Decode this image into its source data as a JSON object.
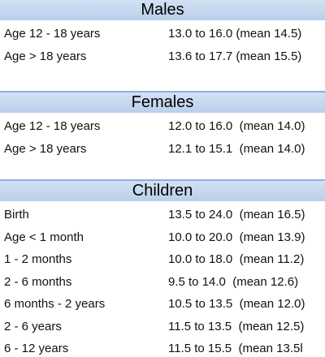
{
  "sections": [
    {
      "title": "Males",
      "rows": [
        [
          "Age 12 - 18 years",
          "13.0 to 16.0 (mean 14.5)"
        ],
        [
          "Age > 18 years",
          "13.6 to 17.7 (mean 15.5)"
        ]
      ]
    },
    {
      "title": "Females",
      "rows": [
        [
          "Age 12 - 18 years",
          "12.0 to 16.0  (mean 14.0)"
        ],
        [
          "Age > 18 years",
          "12.1 to 15.1  (mean 14.0)"
        ]
      ]
    },
    {
      "title": "Children",
      "rows": [
        [
          "Birth",
          "13.5 to 24.0  (mean 16.5)"
        ],
        [
          "Age < 1 month",
          "10.0 to 20.0  (mean 13.9)"
        ],
        [
          "1 - 2 months",
          "10.0 to 18.0  (mean 11.2)"
        ],
        [
          "2 - 6 months",
          "9.5 to 14.0  (mean 12.6)"
        ],
        [
          "6 months - 2 years",
          "10.5 to 13.5  (mean 12.0)"
        ],
        [
          "2 - 6 years",
          "11.5 to 13.5  (mean 12.5)"
        ],
        [
          "6 - 12 years",
          "11.5 to 15.5  (mean 13.5l"
        ]
      ]
    }
  ]
}
